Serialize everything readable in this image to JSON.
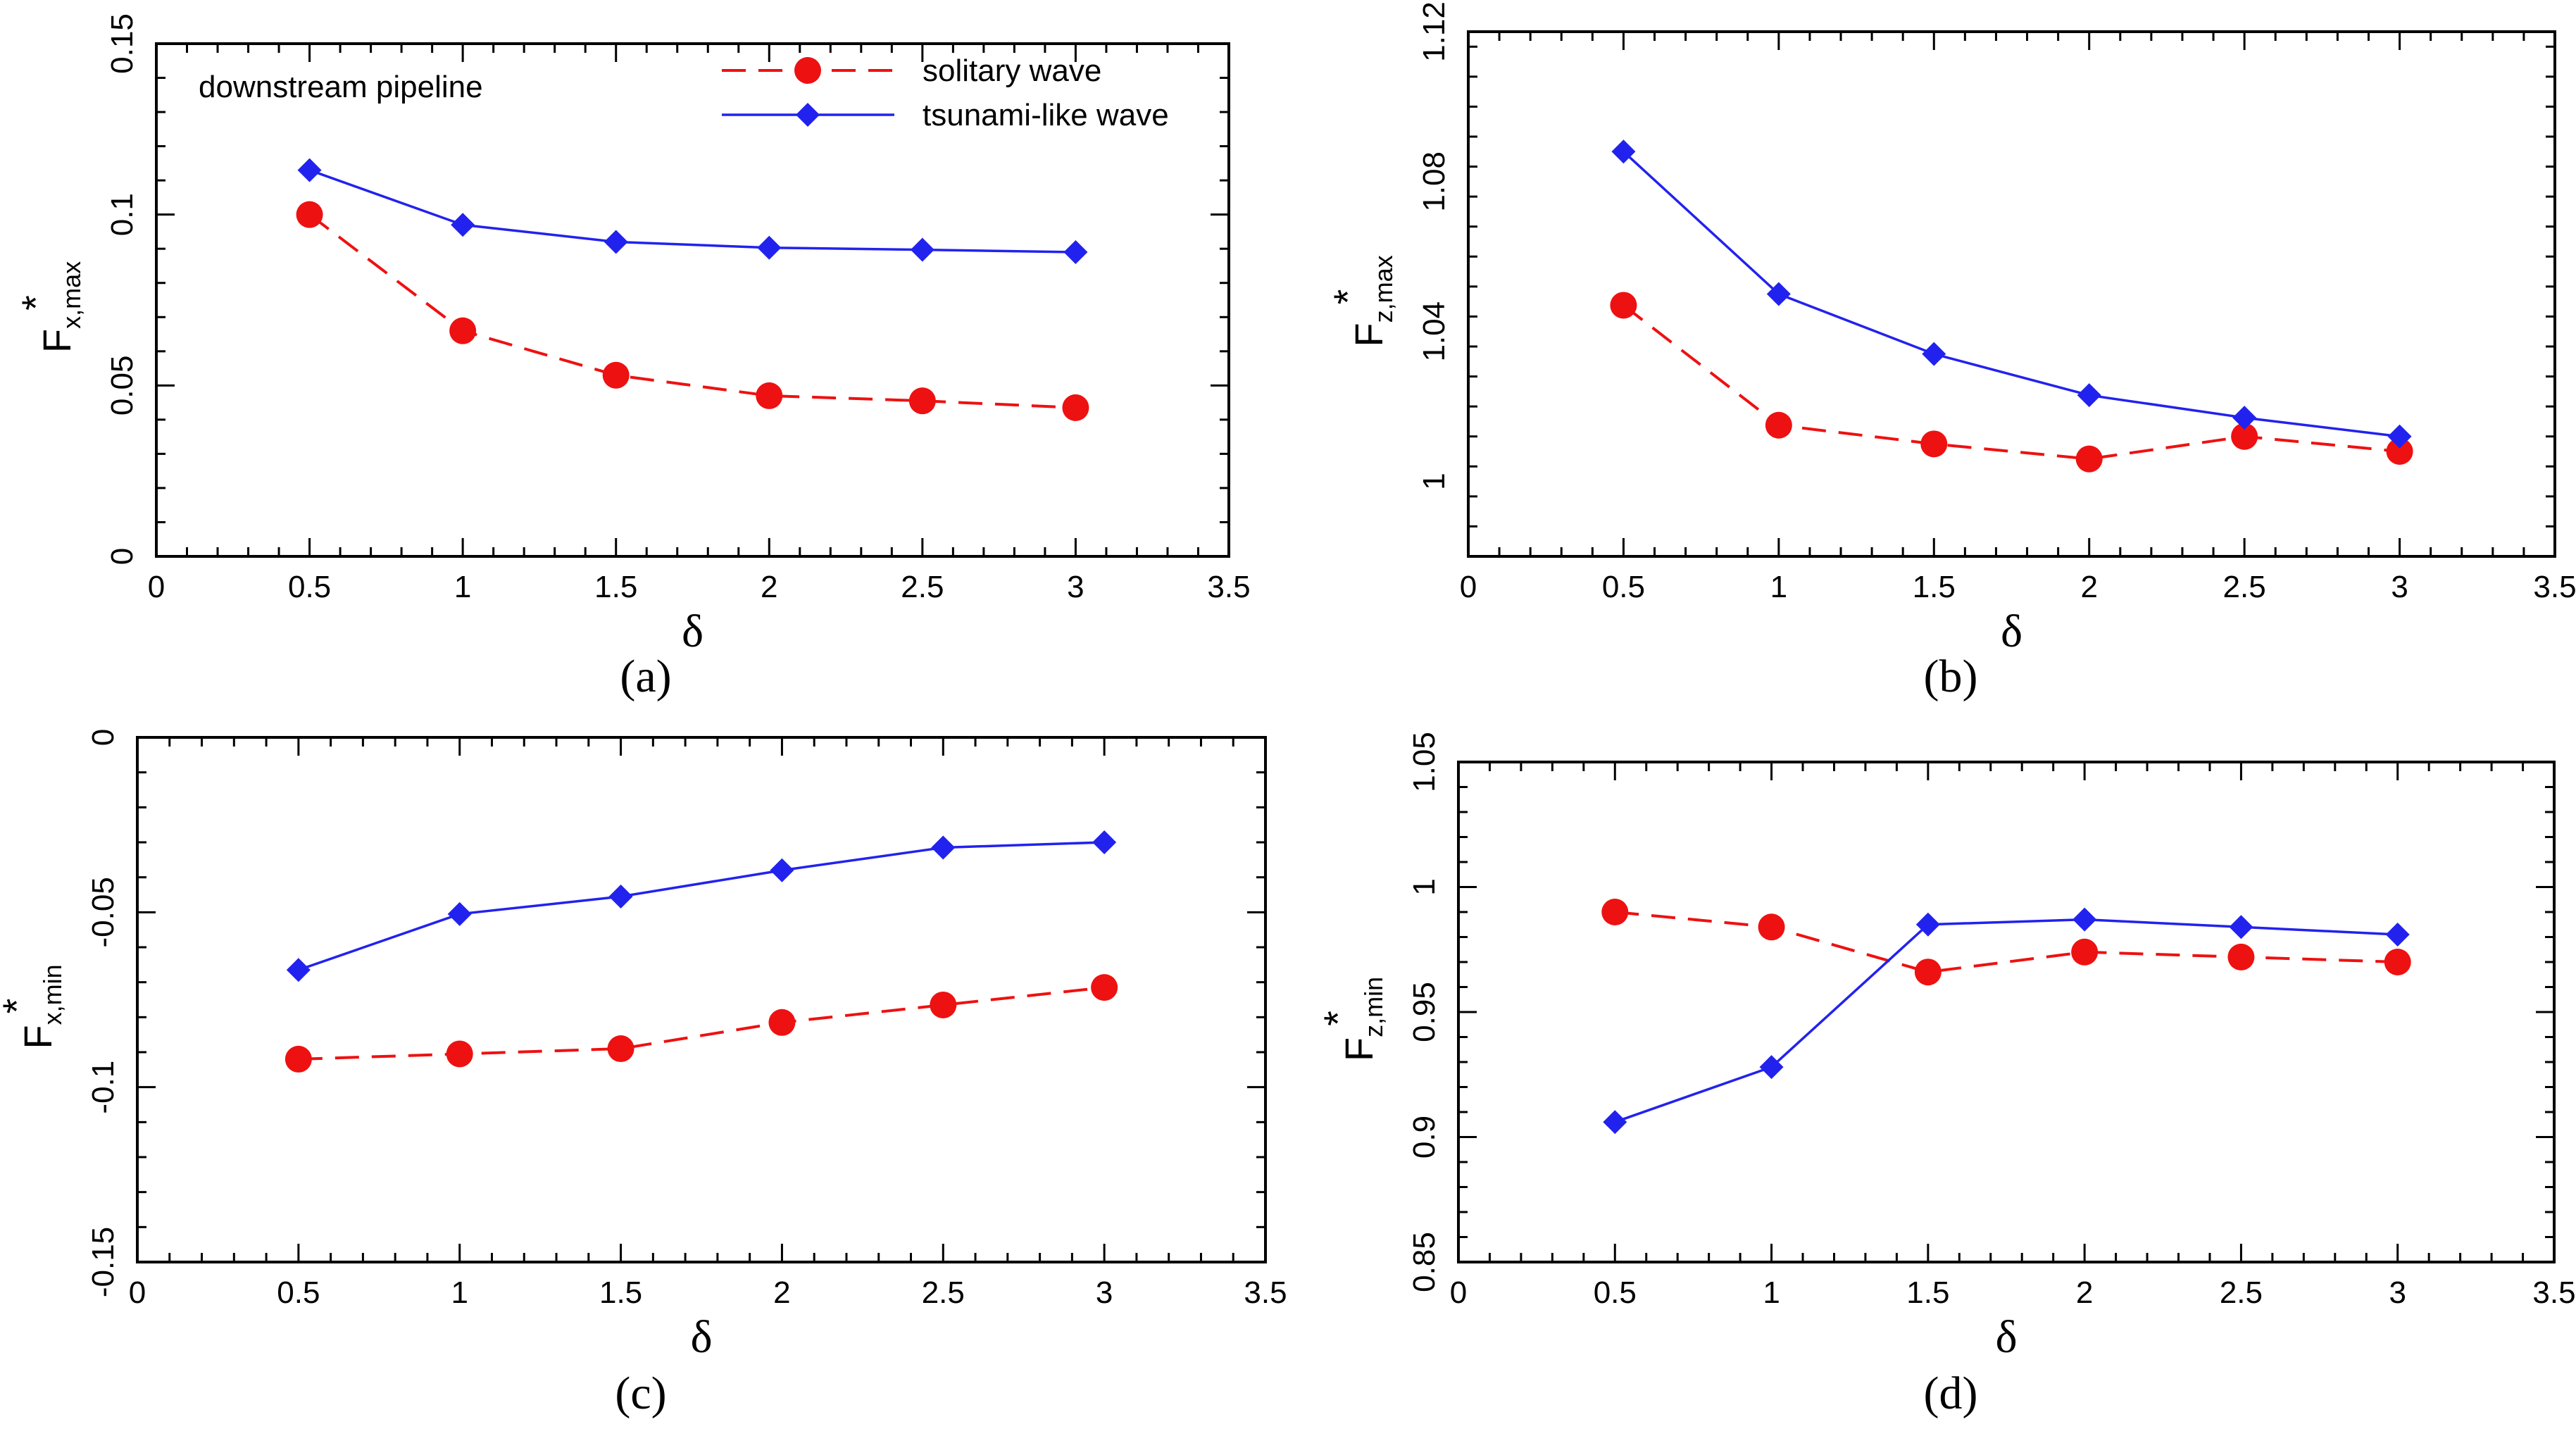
{
  "legend": {
    "solitary": "solitary wave",
    "tsunami": "tsunami-like wave"
  },
  "colors": {
    "solitary": "#ee1111",
    "tsunami": "#2222ee"
  },
  "chart_data": [
    {
      "panel": "a",
      "type": "line",
      "panel_label": "(a)",
      "annotation": "downstream pipeline",
      "xlabel": "δ",
      "ylabel_main": "F",
      "ylabel_sub": "x,max",
      "ylabel_sup": "*",
      "xlim": [
        0,
        3.5
      ],
      "ylim": [
        0,
        0.15
      ],
      "xticks": [
        0,
        0.5,
        1,
        1.5,
        2,
        2.5,
        3,
        3.5
      ],
      "xtick_labels": [
        "0",
        "0.5",
        "1",
        "1.5",
        "2",
        "2.5",
        "3",
        "3.5"
      ],
      "yticks": [
        0,
        0.05,
        0.1,
        0.15
      ],
      "ytick_labels": [
        "0",
        "0.05",
        "0.1",
        "0.15"
      ],
      "x": [
        0.5,
        1,
        1.5,
        2,
        2.5,
        3
      ],
      "series": [
        {
          "name": "solitary wave",
          "key": "solitary",
          "values": [
            0.1,
            0.066,
            0.053,
            0.047,
            0.0455,
            0.0435
          ]
        },
        {
          "name": "tsunami-like wave",
          "key": "tsunami",
          "values": [
            0.113,
            0.097,
            0.092,
            0.0903,
            0.0897,
            0.089
          ]
        }
      ]
    },
    {
      "panel": "b",
      "type": "line",
      "panel_label": "(b)",
      "xlabel": "δ",
      "ylabel_main": "F",
      "ylabel_sub": "z,max",
      "ylabel_sup": "*",
      "xlim": [
        0,
        3.5
      ],
      "ylim": [
        0.98,
        1.12
      ],
      "xticks": [
        0,
        0.5,
        1,
        1.5,
        2,
        2.5,
        3,
        3.5
      ],
      "xtick_labels": [
        "0",
        "0.5",
        "1",
        "1.5",
        "2",
        "2.5",
        "3",
        "3.5"
      ],
      "yticks": [
        1,
        1.04,
        1.08,
        1.12
      ],
      "ytick_labels": [
        "1",
        "1.04",
        "1.08",
        "1.12"
      ],
      "x": [
        0.5,
        1,
        1.5,
        2,
        2.5,
        3
      ],
      "series": [
        {
          "name": "solitary wave",
          "key": "solitary",
          "values": [
            1.047,
            1.015,
            1.01,
            1.006,
            1.012,
            1.008
          ]
        },
        {
          "name": "tsunami-like wave",
          "key": "tsunami",
          "values": [
            1.088,
            1.05,
            1.034,
            1.023,
            1.017,
            1.012
          ]
        }
      ]
    },
    {
      "panel": "c",
      "type": "line",
      "panel_label": "(c)",
      "xlabel": "δ",
      "ylabel_main": "F",
      "ylabel_sub": "x,min",
      "ylabel_sup": "*",
      "xlim": [
        0,
        3.5
      ],
      "ylim": [
        -0.15,
        0
      ],
      "xticks": [
        0,
        0.5,
        1,
        1.5,
        2,
        2.5,
        3,
        3.5
      ],
      "xtick_labels": [
        "0",
        "0.5",
        "1",
        "1.5",
        "2",
        "2.5",
        "3",
        "3.5"
      ],
      "yticks": [
        -0.15,
        -0.1,
        -0.05,
        0
      ],
      "ytick_labels": [
        "-0.15",
        "-0.1",
        "-0.05",
        "0"
      ],
      "x": [
        0.5,
        1,
        1.5,
        2,
        2.5,
        3
      ],
      "series": [
        {
          "name": "solitary wave",
          "key": "solitary",
          "values": [
            -0.092,
            -0.0905,
            -0.089,
            -0.0815,
            -0.0765,
            -0.0715
          ]
        },
        {
          "name": "tsunami-like wave",
          "key": "tsunami",
          "values": [
            -0.0665,
            -0.0505,
            -0.0455,
            -0.038,
            -0.0315,
            -0.03
          ]
        }
      ]
    },
    {
      "panel": "d",
      "type": "line",
      "panel_label": "(d)",
      "xlabel": "δ",
      "ylabel_main": "F",
      "ylabel_sub": "z,min",
      "ylabel_sup": "*",
      "xlim": [
        0,
        3.5
      ],
      "ylim": [
        0.85,
        1.05
      ],
      "xticks": [
        0,
        0.5,
        1,
        1.5,
        2,
        2.5,
        3,
        3.5
      ],
      "xtick_labels": [
        "0",
        "0.5",
        "1",
        "1.5",
        "2",
        "2.5",
        "3",
        "3.5"
      ],
      "yticks": [
        0.85,
        0.9,
        0.95,
        1,
        1.05
      ],
      "ytick_labels": [
        "0.85",
        "0.9",
        "0.95",
        "1",
        "1.05"
      ],
      "x": [
        0.5,
        1,
        1.5,
        2,
        2.5,
        3
      ],
      "series": [
        {
          "name": "solitary wave",
          "key": "solitary",
          "values": [
            0.99,
            0.984,
            0.966,
            0.974,
            0.972,
            0.97
          ]
        },
        {
          "name": "tsunami-like wave",
          "key": "tsunami",
          "values": [
            0.906,
            0.928,
            0.985,
            0.987,
            0.984,
            0.981
          ]
        }
      ]
    }
  ]
}
